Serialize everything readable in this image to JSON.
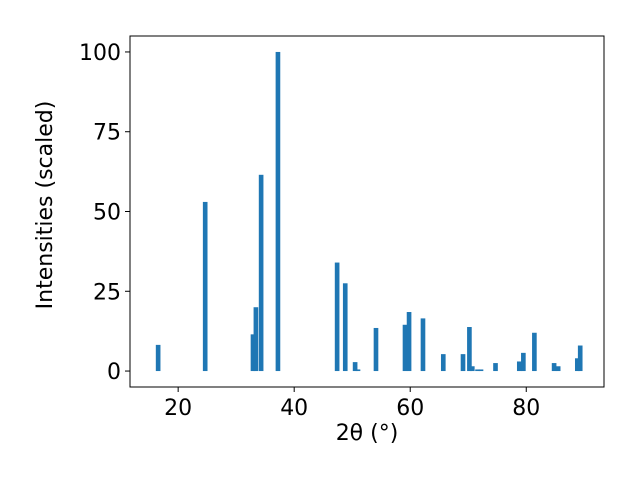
{
  "chart_data": {
    "type": "bar",
    "x_label": "2θ (°)",
    "y_label": "Intensities (scaled)",
    "x": [
      16.55,
      24.66,
      32.9,
      33.4,
      34.3,
      37.2,
      47.4,
      48.8,
      50.5,
      51.0,
      54.1,
      59.1,
      59.8,
      62.2,
      65.7,
      69.1,
      70.2,
      70.7,
      71.6,
      72.2,
      74.7,
      78.8,
      79.5,
      81.4,
      84.8,
      85.5,
      88.8,
      89.3
    ],
    "values": [
      8.2,
      53,
      11.5,
      20,
      61.5,
      100,
      34,
      27.5,
      2.8,
      0.5,
      13.5,
      14.5,
      18.5,
      16.5,
      5.3,
      5.3,
      13.8,
      1.5,
      0.5,
      0.5,
      2.5,
      3,
      5.7,
      12,
      2.5,
      1.5,
      4,
      8
    ],
    "color": "#1f77b4",
    "xlim": [
      11.7,
      93.4
    ],
    "xticks": [
      20,
      40,
      60,
      80
    ],
    "ylim": [
      -5,
      105
    ],
    "yticks": [
      0,
      25,
      50,
      75,
      100
    ]
  }
}
